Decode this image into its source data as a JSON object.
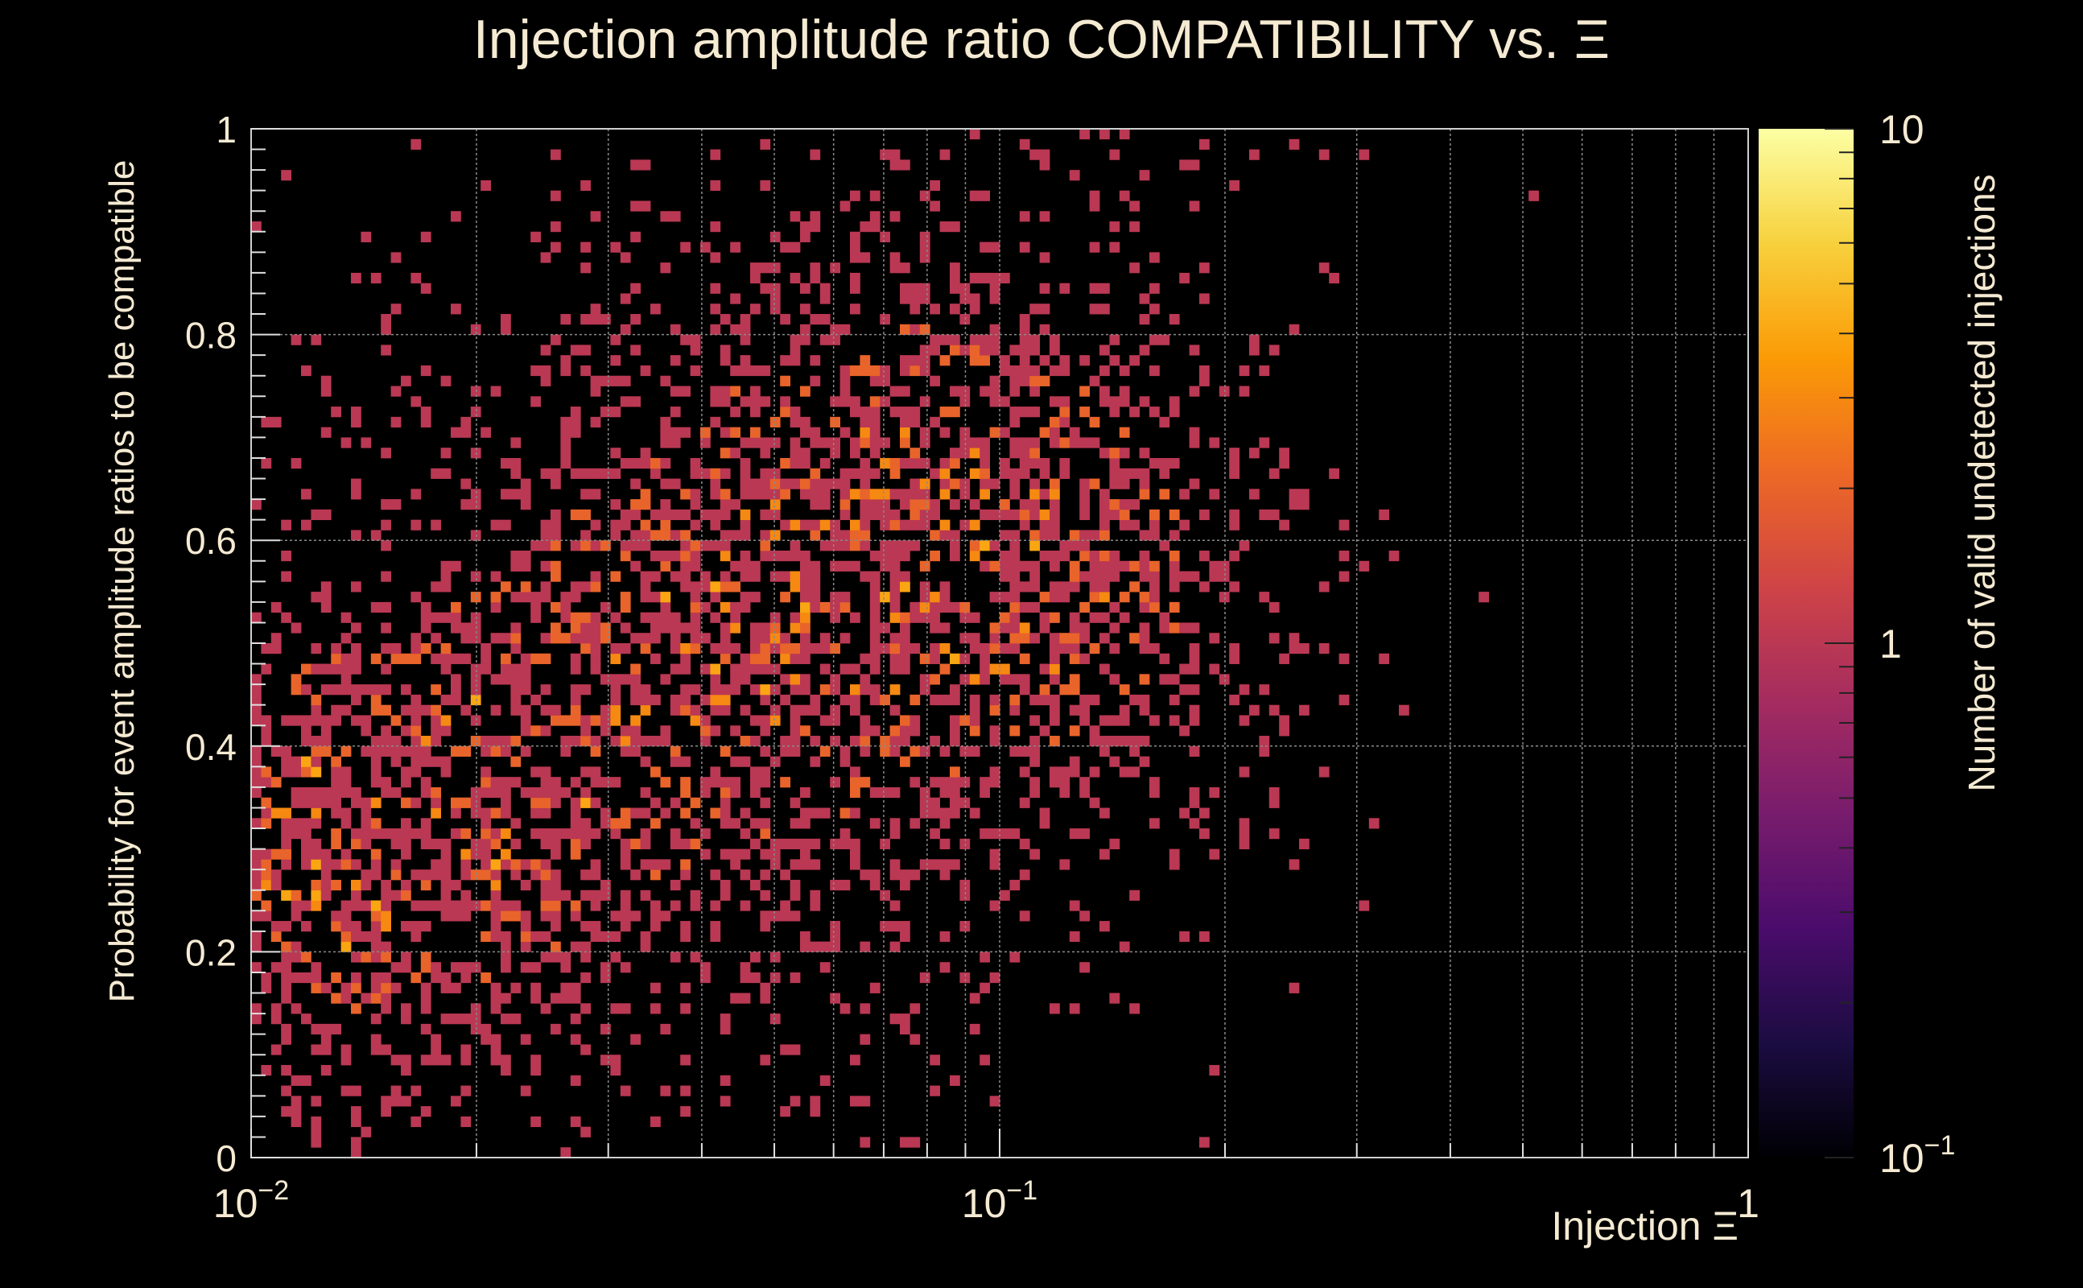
{
  "chart_data": {
    "type": "heatmap",
    "title": "Injection amplitude ratio COMPATIBILITY vs.  Ξ",
    "xlabel": "Injection Ξ",
    "ylabel": "Probability for event amplitude ratios to be compatible",
    "zlabel": "Number of valid undetected injections",
    "x_scale": "log",
    "z_scale": "log",
    "xlim": [
      0.01,
      1
    ],
    "ylim": [
      0,
      1
    ],
    "zlim": [
      0.1,
      10
    ],
    "grid": true,
    "x_tick_labels": [
      {
        "value": 0.01,
        "base": "10",
        "exp": "−2"
      },
      {
        "value": 0.1,
        "base": "10",
        "exp": "−1"
      },
      {
        "value": 1,
        "base": "1",
        "exp": ""
      }
    ],
    "y_tick_labels": [
      "0",
      "0.2",
      "0.4",
      "0.6",
      "0.8",
      "1"
    ],
    "z_tick_labels": [
      {
        "value": 0.1,
        "base": "10",
        "exp": "−1"
      },
      {
        "value": 1,
        "base": "1",
        "exp": ""
      },
      {
        "value": 10,
        "base": "10",
        "exp": ""
      }
    ],
    "bins": {
      "nx": 150,
      "ny": 100
    },
    "colors": {
      "background": "#000000",
      "text": "#f5ead2",
      "grid": "#8a8a8a",
      "colormap": [
        "#000004",
        "#1b0c41",
        "#4a0c6b",
        "#781c6d",
        "#a52c60",
        "#cf4446",
        "#ed6925",
        "#fb9b06",
        "#f7d13d",
        "#fcffa4"
      ]
    },
    "density_model": {
      "clusters": [
        {
          "x_center": 0.013,
          "y_center": 0.3,
          "sigma_logx": 0.23,
          "sigma_y": 0.14,
          "weight": 1.0
        },
        {
          "x_center": 0.04,
          "y_center": 0.5,
          "sigma_logx": 0.3,
          "sigma_y": 0.22,
          "weight": 0.75
        },
        {
          "x_center": 0.09,
          "y_center": 0.65,
          "sigma_logx": 0.22,
          "sigma_y": 0.2,
          "weight": 0.6
        },
        {
          "x_center": 0.14,
          "y_center": 0.55,
          "sigma_logx": 0.15,
          "sigma_y": 0.12,
          "weight": 0.4
        }
      ],
      "occupied_fraction_peak": 0.55,
      "counts_range": [
        1,
        4
      ]
    }
  }
}
